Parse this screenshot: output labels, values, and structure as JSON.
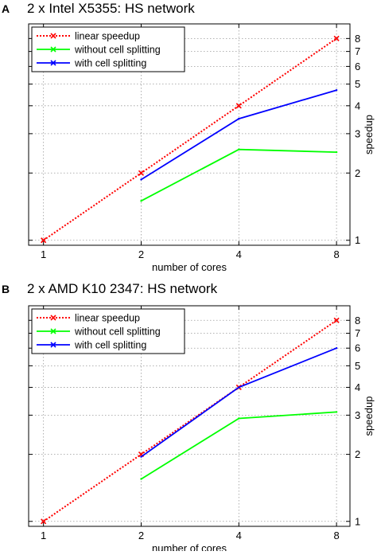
{
  "chart_data": [
    {
      "panel_label": "A",
      "type": "line",
      "title": "2 x Intel X5355: HS network",
      "xlabel": "number of cores",
      "ylabel": "speedup",
      "x_scale": "log2",
      "y_scale": "log",
      "xlim": [
        0.9,
        8.8
      ],
      "ylim": [
        0.95,
        9.3
      ],
      "x_ticks": [
        "1",
        "2",
        "4",
        "8"
      ],
      "y_ticks": [
        "1",
        "2",
        "3",
        "4",
        "5",
        "6",
        "7",
        "8"
      ],
      "grid": true,
      "legend_position": "top-left",
      "series": [
        {
          "name": "linear speedup",
          "color": "#ff0000",
          "style": "dotted",
          "marker": "x",
          "x": [
            1,
            2,
            4,
            8
          ],
          "y": [
            1,
            2,
            4,
            8
          ]
        },
        {
          "name": "without cell splitting",
          "color": "#00ff00",
          "style": "solid",
          "marker": "none",
          "x": [
            2,
            4,
            8
          ],
          "y": [
            1.5,
            2.55,
            2.48
          ]
        },
        {
          "name": "with cell splitting",
          "color": "#0000ff",
          "style": "solid",
          "marker": "none",
          "x": [
            2,
            4,
            8
          ],
          "y": [
            1.87,
            3.5,
            4.7
          ]
        }
      ]
    },
    {
      "panel_label": "B",
      "type": "line",
      "title": "2 x AMD K10 2347: HS network",
      "xlabel": "number of cores",
      "ylabel": "speedup",
      "x_scale": "log2",
      "y_scale": "log",
      "xlim": [
        0.9,
        8.8
      ],
      "ylim": [
        0.95,
        9.3
      ],
      "x_ticks": [
        "1",
        "2",
        "4",
        "8"
      ],
      "y_ticks": [
        "1",
        "2",
        "3",
        "4",
        "5",
        "6",
        "7",
        "8"
      ],
      "grid": true,
      "legend_position": "top-left",
      "series": [
        {
          "name": "linear speedup",
          "color": "#ff0000",
          "style": "dotted",
          "marker": "x",
          "x": [
            1,
            2,
            4,
            8
          ],
          "y": [
            1,
            2,
            4,
            8
          ]
        },
        {
          "name": "without cell splitting",
          "color": "#00ff00",
          "style": "solid",
          "marker": "none",
          "x": [
            2,
            4,
            8
          ],
          "y": [
            1.55,
            2.9,
            3.1
          ]
        },
        {
          "name": "with cell splitting",
          "color": "#0000ff",
          "style": "solid",
          "marker": "none",
          "x": [
            2,
            4,
            8
          ],
          "y": [
            1.95,
            4.0,
            6.0
          ]
        }
      ]
    }
  ]
}
